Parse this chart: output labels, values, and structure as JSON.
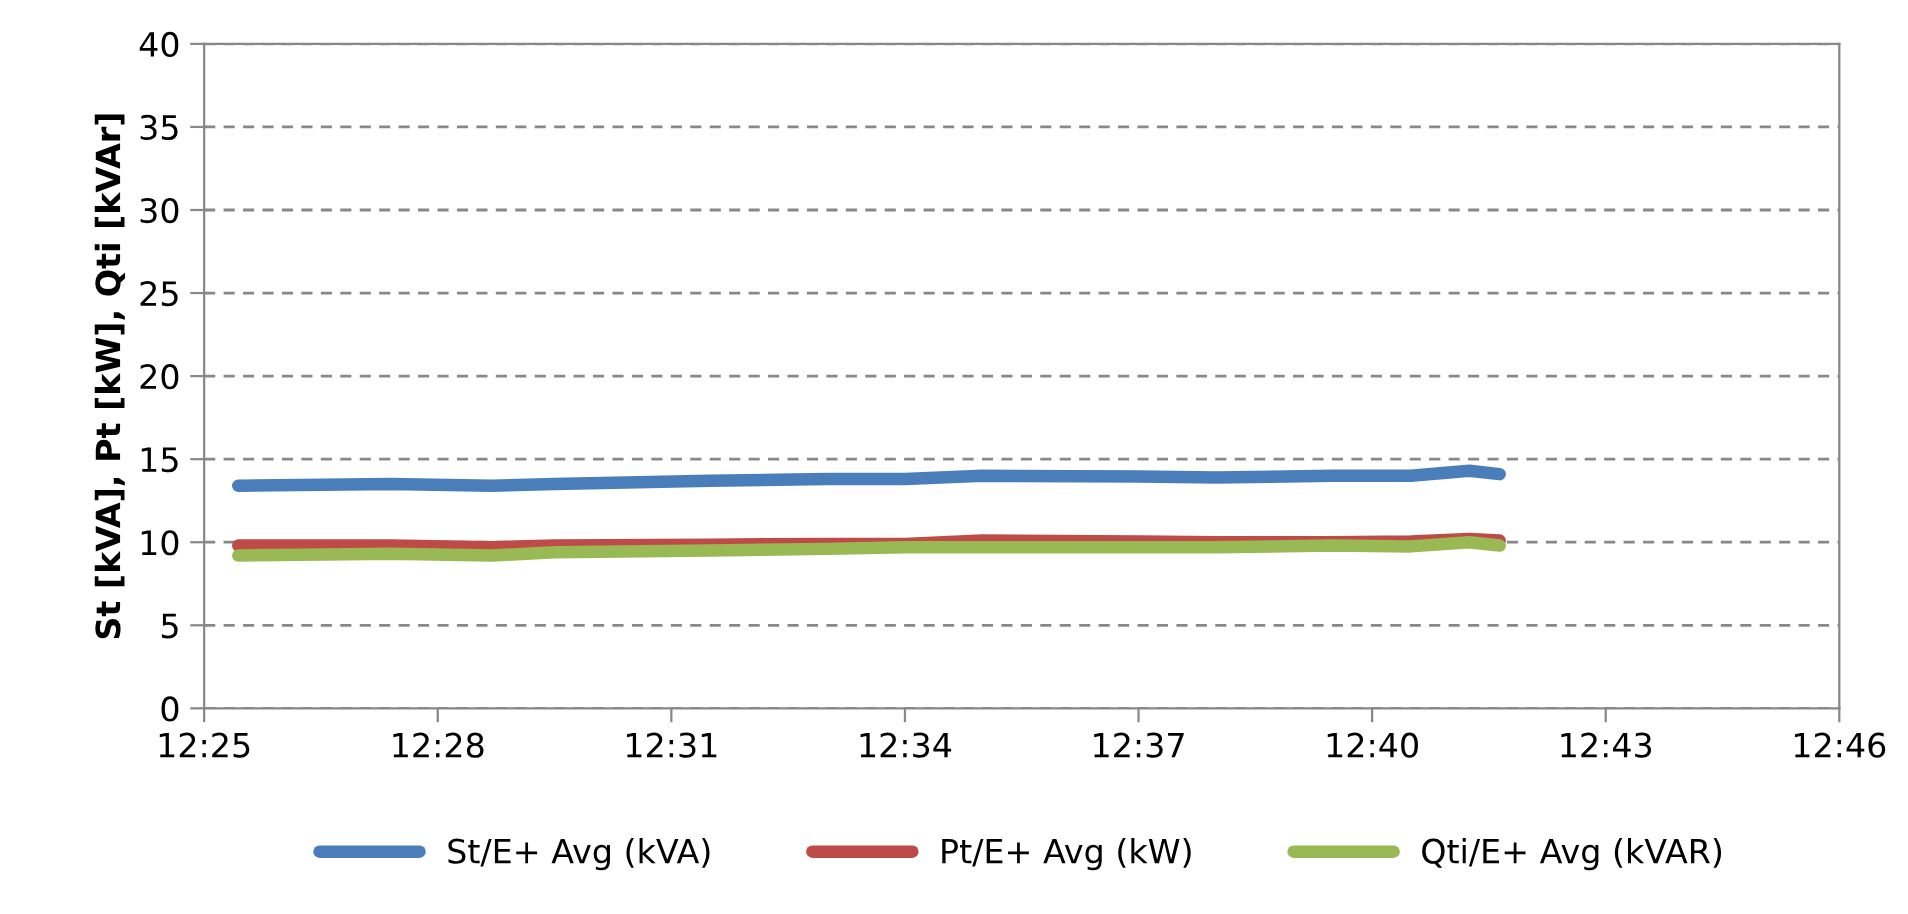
{
  "chart_data": {
    "type": "line",
    "ylabel": "St [kVA], Pt [kW], Qti [kVAr]",
    "x": [
      12.424,
      12.4567,
      12.4783,
      12.4917,
      12.525,
      12.55,
      12.5667,
      12.5833,
      12.6167,
      12.6333,
      12.6583,
      12.675,
      12.6875,
      12.694
    ],
    "series": [
      {
        "name": "St/E+ Avg (kVA)",
        "color": "#4a7ebb",
        "values": [
          13.4,
          13.5,
          13.4,
          13.5,
          13.7,
          13.8,
          13.8,
          14.0,
          13.95,
          13.9,
          14.0,
          14.0,
          14.3,
          14.1
        ]
      },
      {
        "name": "Pt/E+ Avg (kW)",
        "color": "#be4b48",
        "values": [
          9.8,
          9.8,
          9.7,
          9.8,
          9.85,
          9.9,
          9.9,
          10.1,
          10.05,
          10.0,
          10.0,
          10.05,
          10.2,
          10.1
        ]
      },
      {
        "name": "Qti/E+ Avg (kVAR)",
        "color": "#98b954",
        "values": [
          9.2,
          9.3,
          9.2,
          9.4,
          9.5,
          9.6,
          9.7,
          9.7,
          9.7,
          9.7,
          9.8,
          9.75,
          10.0,
          9.8
        ]
      }
    ],
    "xlim": [
      12.4167,
      12.7667
    ],
    "xticks": [
      {
        "value": 12.4167,
        "label": "12:25"
      },
      {
        "value": 12.4667,
        "label": "12:28"
      },
      {
        "value": 12.5167,
        "label": "12:31"
      },
      {
        "value": 12.5667,
        "label": "12:34"
      },
      {
        "value": 12.6167,
        "label": "12:37"
      },
      {
        "value": 12.6667,
        "label": "12:40"
      },
      {
        "value": 12.7167,
        "label": "12:43"
      },
      {
        "value": 12.7667,
        "label": "12:46"
      }
    ],
    "ylim": [
      0,
      40
    ],
    "yticks": [
      0,
      5,
      10,
      15,
      20,
      25,
      30,
      35,
      40
    ],
    "grid": "y",
    "legend": "bottom",
    "marker": "none",
    "line_style": "solid"
  }
}
